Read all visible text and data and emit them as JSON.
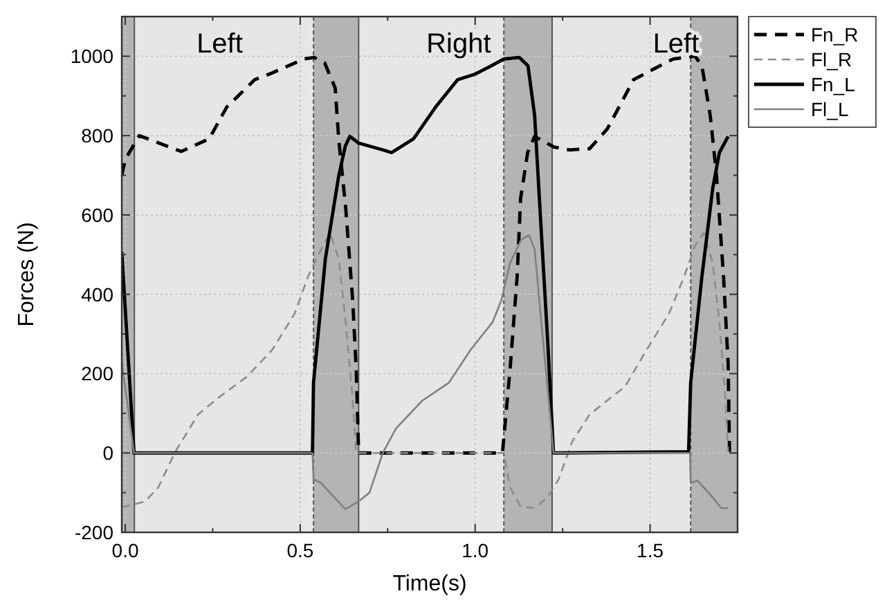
{
  "chart_data": {
    "type": "line",
    "xlabel": "Time(s)",
    "ylabel": "Forces (N)",
    "xlim": [
      -0.01,
      1.75
    ],
    "ylim": [
      -200,
      1100
    ],
    "xticks": [
      {
        "value": 0,
        "label": "0.0"
      },
      {
        "value": 0.25,
        "label": null
      },
      {
        "value": 0.5,
        "label": "0.5"
      },
      {
        "value": 0.75,
        "label": null
      },
      {
        "value": 1,
        "label": "1.0"
      },
      {
        "value": 1.25,
        "label": null
      },
      {
        "value": 1.5,
        "label": "1.5"
      }
    ],
    "yticks": [
      -200,
      {
        "value": -100,
        "label": null
      },
      0,
      {
        "value": 100,
        "label": null
      },
      200,
      {
        "value": 300,
        "label": null
      },
      400,
      {
        "value": 500,
        "label": null
      },
      600,
      {
        "value": 700,
        "label": null
      },
      800,
      {
        "value": 900,
        "label": null
      },
      1000
    ],
    "grid": true,
    "legend": "top right",
    "marker": "none",
    "bands": [
      {
        "axis": "x",
        "from": -0.01,
        "to": 0.026,
        "color": "#b4b4b4"
      },
      {
        "axis": "x",
        "from": 0.538,
        "to": 0.667,
        "color": "#b4b4b4"
      },
      {
        "axis": "x",
        "from": 1.082,
        "to": 1.22,
        "color": "#b4b4b4"
      },
      {
        "axis": "x",
        "from": 1.616,
        "to": 1.75,
        "color": "#b4b4b4"
      }
    ],
    "ref_lines": [
      {
        "axis": "x",
        "value": 0.026,
        "color": "#555555",
        "line_style": "solid"
      },
      {
        "axis": "x",
        "value": 0.538,
        "color": "#555555",
        "line_style": "dashed"
      },
      {
        "axis": "x",
        "value": 0.667,
        "color": "#555555",
        "line_style": "solid"
      },
      {
        "axis": "x",
        "value": 1.082,
        "color": "#555555",
        "line_style": "dashed"
      },
      {
        "axis": "x",
        "value": 1.22,
        "color": "#555555",
        "line_style": "solid"
      },
      {
        "axis": "x",
        "value": 1.616,
        "color": "#555555",
        "line_style": "dashed"
      }
    ],
    "annotations": [
      "Left",
      "Right",
      "Left"
    ],
    "series": [
      {
        "name": "Fn_R",
        "color": "#000000",
        "line_style": "dashed",
        "x": [
          -0.01,
          0.0,
          0.04,
          0.16,
          0.24,
          0.29,
          0.37,
          0.42,
          0.51,
          0.54,
          0.57,
          0.6,
          0.61,
          0.63,
          0.65,
          0.66,
          0.667,
          1.078,
          1.1,
          1.12,
          1.13,
          1.15,
          1.17,
          1.226,
          1.27,
          1.327,
          1.377,
          1.39,
          1.453,
          1.528,
          1.566,
          1.629,
          1.648,
          1.672,
          1.69,
          1.71,
          1.723,
          1.727
        ],
        "values": [
          700,
          740,
          800,
          760,
          792,
          872,
          941,
          958,
          993,
          997,
          983,
          920,
          792,
          618,
          385,
          212,
          0,
          0,
          213,
          444,
          642,
          757,
          798,
          771,
          764,
          767,
          816,
          837,
          941,
          976,
          993,
          1000,
          976,
          851,
          698,
          444,
          226,
          3
        ]
      },
      {
        "name": "Fl_R",
        "color": "#8c8c8c",
        "line_style": "dashed",
        "x": [
          -0.01,
          0.0,
          0.057,
          0.094,
          0.143,
          0.208,
          0.27,
          0.346,
          0.42,
          0.484,
          0.522,
          0.554,
          0.585,
          0.61,
          0.63,
          0.648,
          0.66,
          1.082,
          1.1,
          1.13,
          1.17,
          1.208,
          1.239,
          1.277,
          1.327,
          1.377,
          1.428,
          1.49,
          1.554,
          1.597,
          1.629,
          1.654,
          1.679,
          1.698,
          1.714,
          1.723
        ],
        "values": [
          -135,
          -135,
          -122,
          -87,
          3,
          97,
          142,
          191,
          260,
          351,
          444,
          503,
          555,
          490,
          330,
          156,
          0,
          0,
          -87,
          -135,
          -139,
          -111,
          -66,
          28,
          97,
          132,
          167,
          260,
          351,
          444,
          524,
          555,
          479,
          330,
          156,
          3
        ]
      },
      {
        "name": "Fn_L",
        "color": "#000000",
        "line_style": "solid",
        "x": [
          -0.01,
          0.025,
          0.535,
          0.538,
          0.572,
          0.61,
          0.629,
          0.642,
          0.667,
          0.736,
          0.761,
          0.824,
          0.887,
          0.95,
          1.0,
          1.038,
          1.082,
          1.126,
          1.151,
          1.17,
          1.189,
          1.208,
          1.224,
          1.61,
          1.616,
          1.648,
          1.679,
          1.698,
          1.723
        ],
        "values": [
          507,
          0,
          0,
          177,
          490,
          698,
          774,
          798,
          781,
          764,
          757,
          792,
          872,
          941,
          955,
          972,
          993,
          997,
          976,
          851,
          559,
          271,
          0,
          3,
          177,
          444,
          667,
          757,
          798
        ]
      },
      {
        "name": "Fl_L",
        "color": "#808080",
        "line_style": "solid",
        "x": [
          -0.01,
          0.025,
          0.535,
          0.538,
          0.56,
          0.585,
          0.629,
          0.667,
          0.698,
          0.736,
          0.774,
          0.849,
          0.925,
          0.987,
          1.05,
          1.075,
          1.1,
          1.132,
          1.154,
          1.17,
          1.189,
          1.208,
          1.224,
          1.614,
          1.616,
          1.635,
          1.667,
          1.704,
          1.723
        ],
        "values": [
          230,
          0,
          0,
          -66,
          -76,
          -100,
          -142,
          -122,
          -100,
          0,
          62,
          132,
          177,
          260,
          330,
          385,
          479,
          538,
          549,
          514,
          330,
          156,
          0,
          0,
          -76,
          -69,
          -100,
          -139,
          -139
        ]
      }
    ]
  }
}
